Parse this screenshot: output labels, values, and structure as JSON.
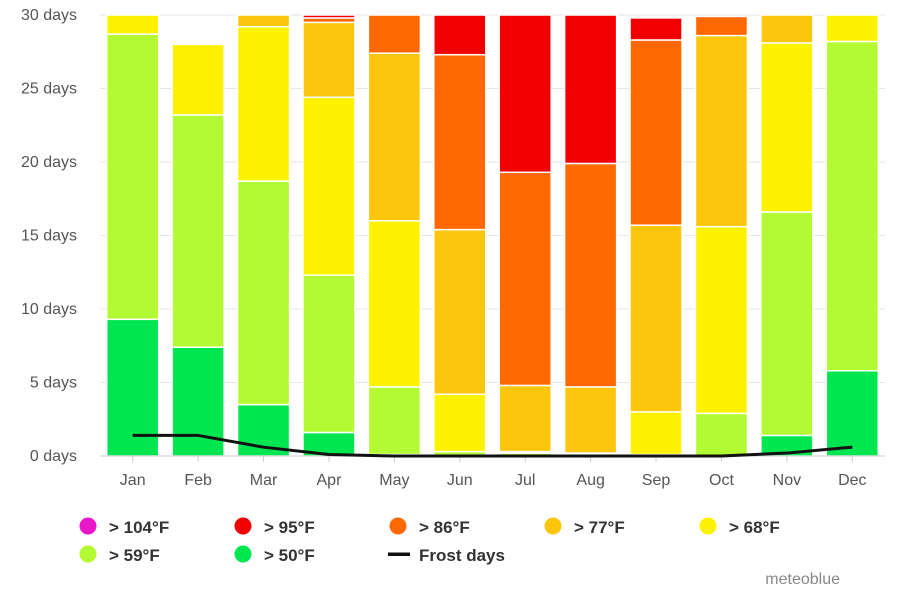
{
  "chart_data": {
    "type": "bar",
    "stacked": true,
    "categories": [
      "Jan",
      "Feb",
      "Mar",
      "Apr",
      "May",
      "Jun",
      "Jul",
      "Aug",
      "Sep",
      "Oct",
      "Nov",
      "Dec"
    ],
    "days_in_month": [
      30,
      28,
      30,
      30,
      30,
      30,
      30,
      30,
      30,
      30,
      30,
      30
    ],
    "y_tick_labels": [
      "0 days",
      "5 days",
      "10 days",
      "15 days",
      "20 days",
      "25 days",
      "30 days"
    ],
    "ylim": [
      0,
      30
    ],
    "grid": true,
    "legend_position": "bottom",
    "series": [
      {
        "name": "> 104°F",
        "color": "#e818c8",
        "values": [
          0,
          0,
          0,
          0,
          0,
          0,
          0,
          0,
          0,
          0,
          0,
          0
        ]
      },
      {
        "name": "> 95°F",
        "color": "#f00000",
        "values": [
          0,
          0,
          0,
          0.2,
          0,
          2.7,
          10.7,
          10.1,
          1.5,
          0,
          0,
          0
        ]
      },
      {
        "name": "> 86°F",
        "color": "#ff6800",
        "values": [
          0,
          0,
          0,
          0.3,
          2.6,
          11.9,
          14.5,
          15.2,
          12.6,
          1.3,
          0,
          0
        ]
      },
      {
        "name": "> 77°F",
        "color": "#fcc60c",
        "values": [
          0,
          0,
          0.8,
          5.1,
          11.4,
          11.2,
          4.5,
          4.5,
          12.7,
          13.0,
          1.9,
          0
        ]
      },
      {
        "name": "> 68°F",
        "color": "#fff200",
        "values": [
          1.3,
          4.8,
          10.5,
          12.1,
          11.3,
          3.9,
          0.1,
          0.1,
          2.9,
          12.7,
          11.5,
          1.8
        ]
      },
      {
        "name": "> 59°F",
        "color": "#b4fa32",
        "values": [
          19.4,
          15.8,
          15.2,
          10.7,
          4.6,
          0.3,
          0.2,
          0.1,
          0.1,
          2.9,
          15.2,
          22.4
        ]
      },
      {
        "name": "> 50°F",
        "color": "#00e650",
        "values": [
          9.3,
          7.4,
          3.5,
          1.6,
          0.1,
          0,
          0,
          0,
          0,
          0,
          1.4,
          5.8
        ]
      }
    ],
    "frost_days": {
      "name": "Frost days",
      "color": "#111111",
      "values": [
        1.4,
        1.4,
        0.6,
        0.1,
        0,
        0,
        0,
        0,
        0,
        0,
        0.2,
        0.6
      ]
    },
    "legend_order": [
      "> 104°F",
      "> 95°F",
      "> 86°F",
      "> 77°F",
      "> 68°F",
      "> 59°F",
      "> 50°F",
      "Frost days"
    ],
    "credit": "meteoblue"
  }
}
